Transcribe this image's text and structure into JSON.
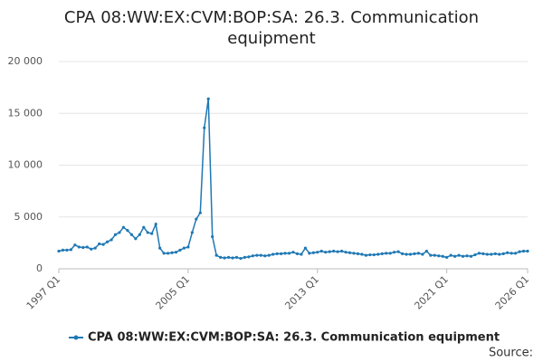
{
  "chart_data": {
    "type": "line",
    "title": "CPA 08:WW:EX:CVM:BOP:SA: 26.3. Communication equipment",
    "categories": [
      "1997 Q1",
      null,
      null,
      null,
      null,
      null,
      null,
      null,
      null,
      null,
      null,
      null,
      null,
      null,
      null,
      null,
      null,
      null,
      null,
      null,
      null,
      null,
      null,
      null,
      null,
      null,
      null,
      null,
      null,
      null,
      null,
      null,
      "2005 Q1",
      null,
      null,
      null,
      null,
      null,
      null,
      null,
      null,
      null,
      null,
      null,
      null,
      null,
      null,
      null,
      null,
      null,
      null,
      null,
      null,
      null,
      null,
      null,
      null,
      null,
      null,
      null,
      null,
      null,
      null,
      null,
      "2013 Q1",
      null,
      null,
      null,
      null,
      null,
      null,
      null,
      null,
      null,
      null,
      null,
      null,
      null,
      null,
      null,
      null,
      null,
      null,
      null,
      null,
      null,
      null,
      null,
      null,
      null,
      null,
      null,
      null,
      null,
      null,
      null,
      "2021 Q1",
      null,
      null,
      null,
      null,
      null,
      null,
      null,
      null,
      null,
      null,
      null,
      null,
      null,
      null,
      null,
      null,
      null,
      null,
      null,
      "2026 Q1"
    ],
    "series": [
      {
        "name": "CPA 08:WW:EX:CVM:BOP:SA: 26.3. Communication equipment",
        "color": "#1f78b4",
        "values": [
          1700,
          1800,
          1800,
          1850,
          2300,
          2100,
          2050,
          2100,
          1900,
          2000,
          2400,
          2350,
          2600,
          2800,
          3300,
          3500,
          4000,
          3700,
          3300,
          2900,
          3300,
          4000,
          3500,
          3400,
          4300,
          2000,
          1500,
          1500,
          1550,
          1600,
          1800,
          2000,
          2100,
          3500,
          4800,
          5400,
          13600,
          16400,
          3100,
          1300,
          1100,
          1050,
          1100,
          1050,
          1100,
          1000,
          1100,
          1150,
          1250,
          1300,
          1300,
          1250,
          1300,
          1400,
          1450,
          1450,
          1500,
          1500,
          1600,
          1450,
          1400,
          2000,
          1500,
          1550,
          1600,
          1700,
          1600,
          1650,
          1700,
          1650,
          1700,
          1600,
          1550,
          1500,
          1450,
          1400,
          1300,
          1350,
          1350,
          1400,
          1450,
          1500,
          1500,
          1600,
          1650,
          1450,
          1400,
          1400,
          1450,
          1500,
          1400,
          1700,
          1300,
          1300,
          1250,
          1200,
          1100,
          1300,
          1200,
          1300,
          1200,
          1250,
          1200,
          1350,
          1500,
          1450,
          1400,
          1400,
          1450,
          1400,
          1450,
          1550,
          1500,
          1500,
          1650,
          1700,
          1700
        ]
      }
    ],
    "ylim": [
      0,
      20000
    ],
    "yticks": [
      0,
      {
        "value": 5000,
        "label": "5 000"
      },
      {
        "value": 10000,
        "label": "10 000"
      },
      {
        "value": 15000,
        "label": "15 000"
      },
      {
        "value": 20000,
        "label": "20 000"
      }
    ],
    "grid": true,
    "source": "Source:"
  }
}
